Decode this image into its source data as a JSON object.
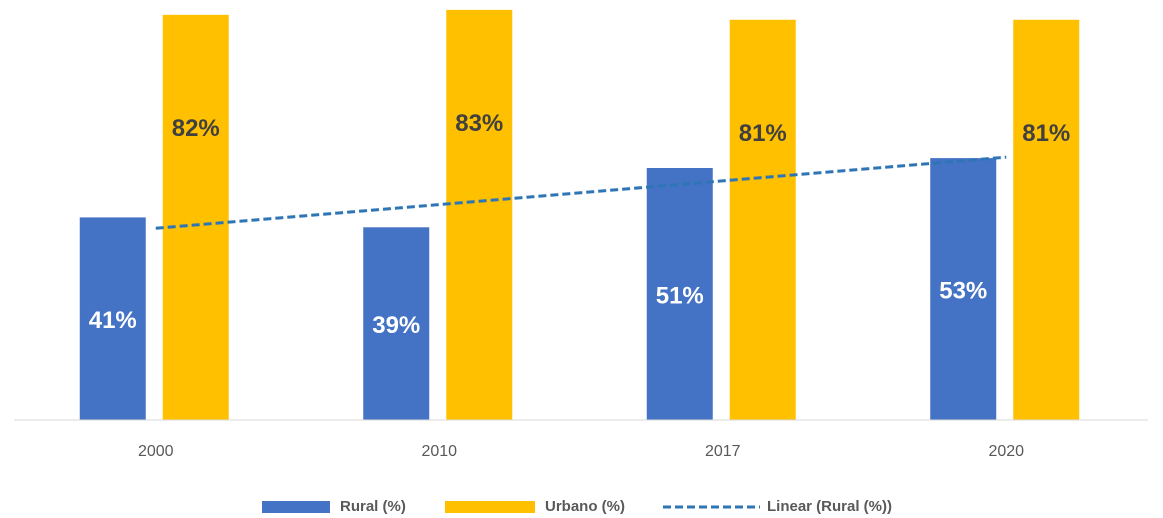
{
  "chart_data": {
    "type": "bar",
    "categories": [
      "2000",
      "2010",
      "2017",
      "2020"
    ],
    "series": [
      {
        "name": "Rural (%)",
        "color": "#4472c4",
        "values": [
          41,
          39,
          51,
          53
        ],
        "value_labels": [
          "41%",
          "39%",
          "51%",
          "53%"
        ],
        "trendline": {
          "type": "linear",
          "name": "Linear (Rural (%))",
          "color": "#2e75b6"
        }
      },
      {
        "name": "Urbano (%)",
        "color": "#ffc000",
        "values": [
          82,
          83,
          81,
          81
        ],
        "value_labels": [
          "82%",
          "83%",
          "81%",
          "81%"
        ]
      }
    ],
    "ylim": [
      0,
      85
    ]
  }
}
